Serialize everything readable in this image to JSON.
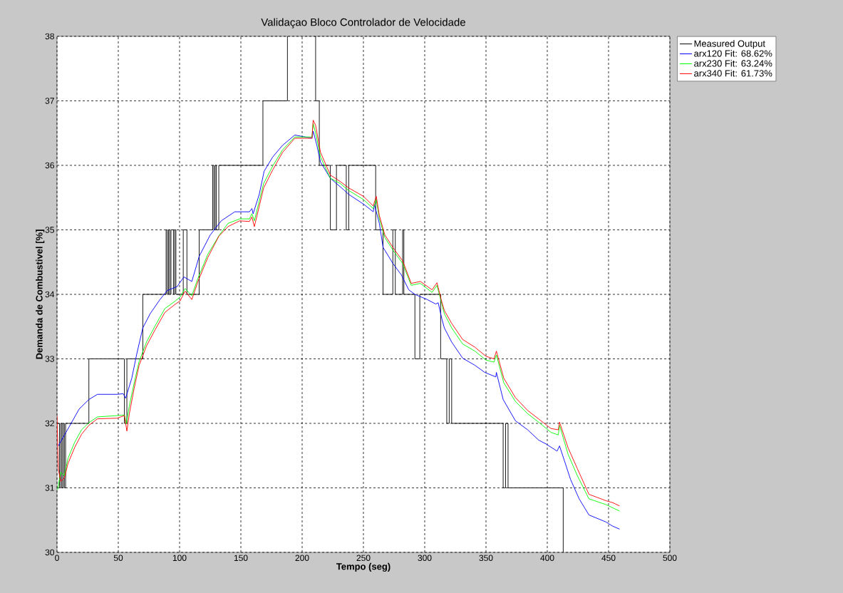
{
  "chart_data": {
    "type": "line",
    "title": "Validaçao Bloco Controlador de Velocidade",
    "xlabel": "Tempo (seg)",
    "ylabel": "Demanda de Combustivel [%]",
    "xlim": [
      0,
      500
    ],
    "ylim": [
      30,
      38
    ],
    "xticks": [
      0,
      50,
      100,
      150,
      200,
      250,
      300,
      350,
      400,
      450,
      500
    ],
    "yticks": [
      30,
      31,
      32,
      33,
      34,
      35,
      36,
      37,
      38
    ],
    "grid": true,
    "legend": "top right",
    "series": [
      {
        "name": "Measured Output",
        "color": "#000000",
        "type": "step",
        "x": [
          0,
          2,
          3,
          4,
          5,
          6,
          7,
          26,
          55,
          57,
          70,
          89,
          90,
          91,
          92,
          93,
          95,
          96,
          97,
          103,
          106,
          116,
          127,
          128,
          129,
          130,
          132,
          168,
          188,
          189,
          210,
          211,
          214,
          223,
          228,
          236,
          238,
          260,
          266,
          274,
          276,
          282,
          283,
          292,
          296,
          313,
          318,
          320,
          322,
          364,
          366,
          368,
          413
        ],
        "values": [
          32,
          31,
          32,
          31,
          32,
          31,
          32,
          33,
          32,
          33,
          34,
          35,
          34,
          35,
          34,
          35,
          34,
          35,
          34,
          35,
          34,
          35,
          36,
          35,
          36,
          35,
          36,
          37,
          38,
          null,
          38,
          37,
          36,
          35,
          36,
          35,
          36,
          35,
          34,
          35,
          34,
          35,
          34,
          33,
          34,
          33,
          32,
          33,
          32,
          31,
          32,
          31,
          30
        ]
      },
      {
        "name": "arx120 Fit: 68.62%",
        "color": "#0000ff",
        "x": [
          1,
          10,
          18,
          26,
          33,
          49,
          54,
          56,
          61,
          65,
          70,
          76,
          84,
          90,
          98,
          103.5,
          110,
          116,
          125,
          134,
          145,
          157,
          159,
          160,
          165,
          169,
          176,
          184,
          194,
          208,
          209,
          212,
          215,
          223,
          234,
          238,
          250,
          258,
          259,
          263,
          266,
          274,
          281,
          287,
          292,
          302,
          309,
          311,
          314,
          316,
          322,
          331,
          341,
          349,
          358,
          358.5,
          364,
          374,
          384,
          393,
          399,
          408,
          410,
          414,
          419,
          426,
          434,
          448,
          453,
          459
        ],
        "values": [
          31.65,
          31.95,
          32.22,
          32.37,
          32.45,
          32.45,
          32.46,
          32.39,
          32.7,
          33.07,
          33.48,
          33.7,
          33.92,
          34.06,
          34.12,
          34.27,
          34.2,
          34.59,
          34.92,
          35.14,
          35.28,
          35.28,
          35.33,
          35.25,
          35.55,
          35.91,
          36.13,
          36.31,
          36.47,
          36.42,
          36.53,
          36.31,
          36.05,
          35.8,
          35.62,
          35.55,
          35.4,
          35.28,
          35.39,
          35.1,
          34.73,
          34.48,
          34.3,
          34.07,
          34.0,
          33.92,
          33.85,
          33.87,
          33.62,
          33.48,
          33.26,
          33.01,
          32.9,
          32.79,
          32.72,
          32.79,
          32.37,
          32.04,
          31.9,
          31.74,
          31.68,
          31.57,
          31.65,
          31.42,
          31.13,
          30.83,
          30.58,
          30.47,
          30.41,
          30.36
        ]
      },
      {
        "name": "arx230 Fit: 63.24%",
        "color": "#00ff00",
        "x": [
          0.5,
          3,
          6,
          9,
          14.5,
          20,
          26,
          33,
          49,
          55,
          56.5,
          59,
          63,
          67,
          73,
          80,
          88,
          96,
          100.5,
          104.5,
          110,
          115,
          123,
          132.5,
          139.5,
          149,
          157,
          159,
          161,
          168.6,
          176,
          184,
          194,
          208,
          209,
          211,
          215,
          223,
          231,
          238,
          250,
          258,
          260.5,
          263,
          267.5,
          275,
          282,
          289,
          296.5,
          306,
          310,
          314,
          316,
          322,
          331,
          341,
          350,
          356.5,
          358.5,
          364.5,
          374,
          384,
          393.5,
          403,
          409,
          410,
          417,
          424.5,
          434,
          448,
          453.5,
          459
        ],
        "values": [
          30.97,
          31.24,
          31.19,
          31.46,
          31.71,
          31.9,
          32.01,
          32.1,
          32.12,
          32.13,
          31.99,
          32.27,
          32.63,
          32.96,
          33.26,
          33.51,
          33.78,
          33.89,
          33.96,
          34.09,
          33.98,
          34.25,
          34.62,
          34.92,
          35.1,
          35.17,
          35.17,
          35.25,
          35.14,
          35.72,
          35.99,
          36.24,
          36.44,
          36.44,
          36.65,
          36.5,
          36.13,
          35.8,
          35.72,
          35.61,
          35.47,
          35.33,
          35.47,
          35.17,
          34.88,
          34.66,
          34.48,
          34.14,
          34.17,
          34.03,
          34.14,
          33.85,
          33.7,
          33.48,
          33.23,
          33.12,
          32.98,
          32.95,
          33.06,
          32.63,
          32.34,
          32.15,
          32.01,
          31.86,
          31.82,
          31.97,
          31.52,
          31.19,
          30.83,
          30.74,
          30.69,
          30.64
        ]
      },
      {
        "name": "arx340 Fit: 61.73%",
        "color": "#ff0000",
        "x": [
          0,
          1,
          3,
          6,
          9,
          14.5,
          20,
          26,
          33,
          49,
          55,
          57,
          59,
          63,
          67,
          73,
          80,
          88,
          96,
          100.5,
          104.5,
          110,
          115,
          123,
          132,
          139.5,
          149,
          157,
          159,
          161,
          168.6,
          176,
          184,
          194,
          208,
          209,
          211,
          215,
          223,
          231,
          238,
          250,
          258,
          260.5,
          263,
          267.5,
          275,
          282,
          289,
          296.5,
          306,
          310,
          314,
          316,
          322,
          331,
          341,
          350,
          356.5,
          358.5,
          364.5,
          374,
          384,
          393.5,
          403,
          409,
          410,
          417,
          424.5,
          434,
          448,
          453.5,
          459
        ],
        "values": [
          32.12,
          31.3,
          31.1,
          31.15,
          31.38,
          31.63,
          31.83,
          31.97,
          32.07,
          32.08,
          32.12,
          31.88,
          32.15,
          32.55,
          32.9,
          33.2,
          33.45,
          33.72,
          33.84,
          33.9,
          34.05,
          33.92,
          34.2,
          34.57,
          34.9,
          35.05,
          35.14,
          35.13,
          35.2,
          35.05,
          35.65,
          35.93,
          36.2,
          36.42,
          36.42,
          36.7,
          36.62,
          36.2,
          35.85,
          35.75,
          35.65,
          35.52,
          35.37,
          35.52,
          35.22,
          34.92,
          34.7,
          34.52,
          34.17,
          34.2,
          34.07,
          34.18,
          33.88,
          33.75,
          33.55,
          33.3,
          33.18,
          33.04,
          33.0,
          33.12,
          32.7,
          32.4,
          32.2,
          32.06,
          31.92,
          31.9,
          32.02,
          31.62,
          31.3,
          30.9,
          30.8,
          30.77,
          30.72
        ]
      }
    ]
  }
}
